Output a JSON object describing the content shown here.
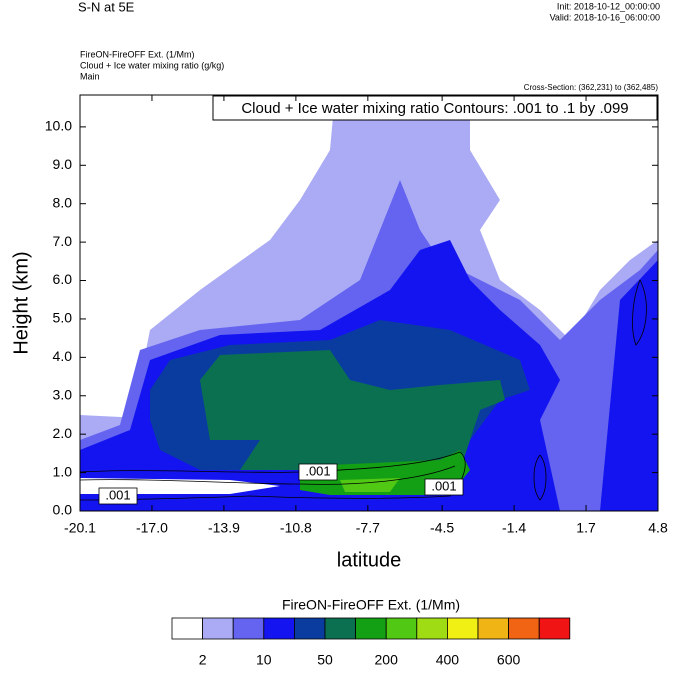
{
  "chart_data": {
    "type": "contour",
    "title": "S-N at 5E",
    "init": "Init: 2018-10-12_00:00:00",
    "valid": "Valid: 2018-10-16_06:00:00",
    "field_title": "FireON-FireOFF Ext.   (1/Mm)",
    "contour_field_title": "Cloud + Ice water mixing ratio   (g/kg)",
    "subtitle": "Main",
    "cross_section": "Cross-Section: (362,231) to (362,485)",
    "contour_info": "Cloud + Ice water mixing ratio Contours: .001 to .1 by .099",
    "contour_labels": [
      ".001",
      ".001",
      ".001"
    ],
    "x_label": "latitude",
    "y_label": "Height (km)",
    "xlim": [
      -20.1,
      4.8
    ],
    "ylim": [
      0,
      10.83
    ],
    "xticks": [
      -20.1,
      {
        "value": -17,
        "label": "-17.0"
      },
      -13.9,
      -10.8,
      -7.7,
      -4.5,
      -1.4,
      1.7,
      4.8
    ],
    "yticks": [
      {
        "value": 0,
        "label": "0.0"
      },
      {
        "value": 1,
        "label": "1.0"
      },
      {
        "value": 2,
        "label": "2.0"
      },
      {
        "value": 3,
        "label": "3.0"
      },
      {
        "value": 4,
        "label": "4.0"
      },
      {
        "value": 5,
        "label": "5.0"
      },
      {
        "value": 6,
        "label": "6.0"
      },
      {
        "value": 7,
        "label": "7.0"
      },
      {
        "value": 8,
        "label": "8.0"
      },
      {
        "value": 9,
        "label": "9.0"
      },
      {
        "value": 10,
        "label": "10.0"
      }
    ],
    "colorbar": {
      "title": "FireON-FireOFF Ext.  (1/Mm)",
      "colors": [
        "#ffffff",
        "#aaaaf5",
        "#6464f0",
        "#1414f0",
        "#0a3ca0",
        "#0a7050",
        "#14a014",
        "#50c814",
        "#a0dc14",
        "#f0f014",
        "#f0b414",
        "#f06414",
        "#f01414"
      ],
      "labels": [
        2,
        10,
        50,
        200,
        400,
        600
      ]
    }
  }
}
